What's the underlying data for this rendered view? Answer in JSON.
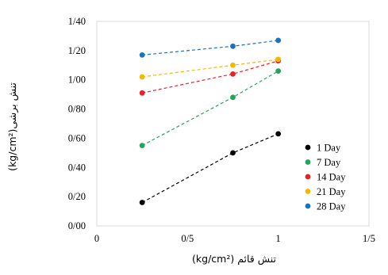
{
  "chart_data": {
    "type": "scatter",
    "title": "",
    "xlabel": "(kg/cm²) تنش قائم",
    "ylabel": "(kg/cm²)تنش برشی",
    "xlim": [
      0,
      1.5
    ],
    "ylim": [
      0,
      1.4
    ],
    "x_ticks": [
      "0",
      "0/5",
      "1",
      "1/5"
    ],
    "x_tick_values": [
      0,
      0.5,
      1,
      1.5
    ],
    "y_ticks": [
      "0/00",
      "0/20",
      "0/40",
      "0/60",
      "0/80",
      "1/00",
      "1/20",
      "1/40"
    ],
    "y_tick_values": [
      0,
      0.2,
      0.4,
      0.6,
      0.8,
      1.0,
      1.2,
      1.4
    ],
    "grid": false,
    "legend_position": "bottom-right",
    "trendlines": "dashed",
    "series": [
      {
        "name": "1 Day",
        "color": "#000000",
        "x": [
          0.25,
          0.75,
          1.0
        ],
        "y": [
          0.16,
          0.5,
          0.63
        ]
      },
      {
        "name": "7 Day",
        "color": "#22a45a",
        "x": [
          0.25,
          0.75,
          1.0
        ],
        "y": [
          0.55,
          0.88,
          1.06
        ]
      },
      {
        "name": "14 Day",
        "color": "#e8202a",
        "x": [
          0.25,
          0.75,
          1.0
        ],
        "y": [
          0.91,
          1.04,
          1.13
        ]
      },
      {
        "name": "21 Day",
        "color": "#f5b800",
        "x": [
          0.25,
          0.75,
          1.0
        ],
        "y": [
          1.02,
          1.1,
          1.14
        ]
      },
      {
        "name": "28 Day",
        "color": "#1a73c2",
        "x": [
          0.25,
          0.75,
          1.0
        ],
        "y": [
          1.17,
          1.23,
          1.27
        ]
      }
    ]
  }
}
